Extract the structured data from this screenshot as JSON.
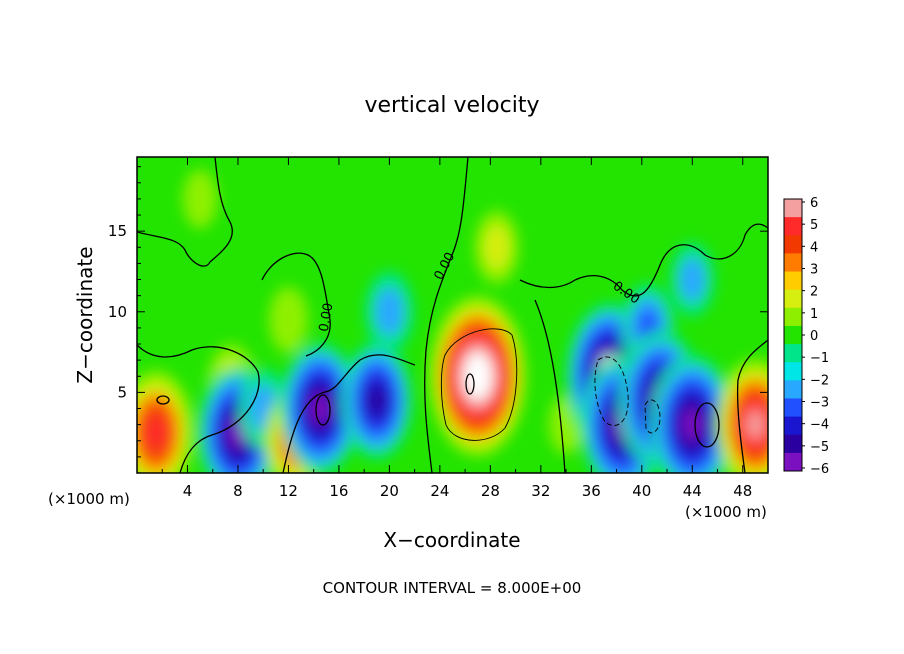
{
  "chart_data": {
    "type": "heatmap",
    "title": "vertical velocity",
    "xlabel": "X−coordinate",
    "ylabel": "Z−coordinate",
    "x_unit": "(×1000 m)",
    "y_unit": "(×1000 m)",
    "xlim": [
      0,
      50
    ],
    "ylim": [
      0,
      19.6
    ],
    "x_ticks": [
      4,
      8,
      12,
      16,
      20,
      24,
      28,
      32,
      36,
      40,
      44,
      48
    ],
    "x_tick_labels": [
      "4",
      "8",
      "12",
      "16",
      "20",
      "24",
      "28",
      "32",
      "36",
      "40",
      "44",
      "48"
    ],
    "y_ticks": [
      5,
      10,
      15
    ],
    "y_tick_labels": [
      "5",
      "10",
      "15"
    ],
    "footer": "CONTOUR INTERVAL = 8.000E+00",
    "contour_labels": [
      "0.00",
      "0.00",
      "0.00"
    ],
    "colorbar": {
      "min": -6,
      "max": 6,
      "labels": [
        "6",
        "5",
        "4",
        "3",
        "2",
        "1",
        "0",
        "−1",
        "−2",
        "−3",
        "−4",
        "−5",
        "−6"
      ],
      "colors": [
        "#f4a0a0",
        "#ff2a2a",
        "#f23a00",
        "#ff7c00",
        "#ffcc00",
        "#d6ee10",
        "#8ef000",
        "#22e400",
        "#00e58a",
        "#00e6e6",
        "#29a8ff",
        "#2050ff",
        "#1a16d0",
        "#2a00a0",
        "#7a10c0"
      ]
    },
    "field_features": [
      {
        "x": 1.5,
        "z": 2.5,
        "w": 5.0,
        "note": "updraft"
      },
      {
        "x": 5.0,
        "z": 17.0,
        "w": 0.5,
        "note": "background"
      },
      {
        "x": 7.5,
        "z": 5.5,
        "w": 2.0,
        "note": "updraft"
      },
      {
        "x": 8.0,
        "z": 2.5,
        "w": -5.5,
        "note": "downdraft"
      },
      {
        "x": 10.0,
        "z": 4.0,
        "w": -2.0,
        "note": "downdraft"
      },
      {
        "x": 12.0,
        "z": 9.5,
        "w": 1.0,
        "note": "updraft"
      },
      {
        "x": 12.5,
        "z": 2.0,
        "w": 3.5,
        "note": "updraft"
      },
      {
        "x": 14.5,
        "z": 4.0,
        "w": -5.5,
        "note": "downdraft"
      },
      {
        "x": 19.0,
        "z": 4.5,
        "w": -4.5,
        "note": "downdraft"
      },
      {
        "x": 20.0,
        "z": 10.0,
        "w": -2.0,
        "note": "downdraft"
      },
      {
        "x": 27.0,
        "z": 6.0,
        "w": 7.5,
        "note": "updraft"
      },
      {
        "x": 28.5,
        "z": 14.0,
        "w": 1.5,
        "note": "updraft"
      },
      {
        "x": 34.0,
        "z": 3.0,
        "w": 0.5,
        "note": "background"
      },
      {
        "x": 37.5,
        "z": 6.0,
        "w": -6.5,
        "note": "downdraft"
      },
      {
        "x": 38.5,
        "z": 3.0,
        "w": -6.0,
        "note": "downdraft"
      },
      {
        "x": 40.5,
        "z": 9.0,
        "w": -2.5,
        "note": "downdraft"
      },
      {
        "x": 41.5,
        "z": 4.5,
        "w": -6.0,
        "note": "downdraft"
      },
      {
        "x": 44.0,
        "z": 3.0,
        "w": -6.0,
        "note": "downdraft"
      },
      {
        "x": 44.0,
        "z": 12.0,
        "w": -1.5,
        "note": "downdraft"
      },
      {
        "x": 49.0,
        "z": 3.0,
        "w": 5.5,
        "note": "updraft"
      }
    ]
  }
}
